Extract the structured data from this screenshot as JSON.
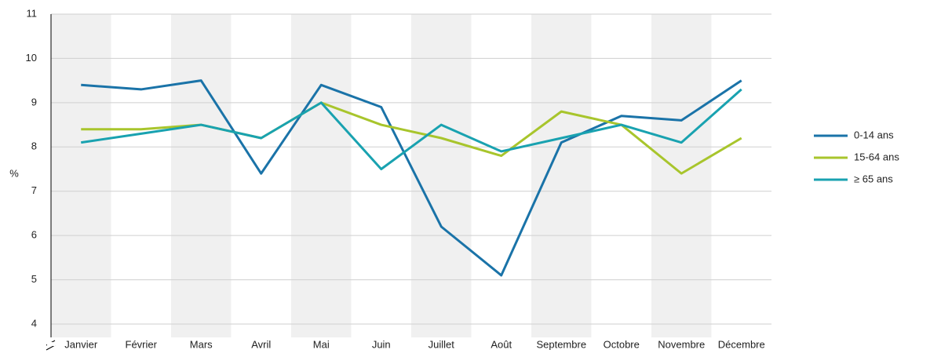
{
  "chart_data": {
    "type": "line",
    "y_label": "%",
    "categories": [
      "Janvier",
      "Février",
      "Mars",
      "Avril",
      "Mai",
      "Juin",
      "Juillet",
      "Août",
      "Septembre",
      "Octobre",
      "Novembre",
      "Décembre"
    ],
    "series": [
      {
        "name": "0-14 ans",
        "color": "#1a73a8",
        "values": [
          9.4,
          9.3,
          9.5,
          7.4,
          9.4,
          8.9,
          6.2,
          5.1,
          8.1,
          8.7,
          8.6,
          9.5
        ]
      },
      {
        "name": "15-64 ans",
        "color": "#a8c52c",
        "values": [
          8.4,
          8.4,
          8.5,
          8.2,
          9.0,
          8.5,
          8.2,
          7.8,
          8.8,
          8.5,
          7.4,
          8.2
        ]
      },
      {
        "name": "≥ 65 ans",
        "color": "#19a2b0",
        "values": [
          8.1,
          8.3,
          8.5,
          8.2,
          9.0,
          7.5,
          8.5,
          7.9,
          8.2,
          8.5,
          8.1,
          9.3
        ]
      }
    ],
    "ylim": [
      4,
      11
    ],
    "yticks": [
      4,
      5,
      6,
      7,
      8,
      9,
      10,
      11
    ],
    "grid": true,
    "legend": "right"
  }
}
